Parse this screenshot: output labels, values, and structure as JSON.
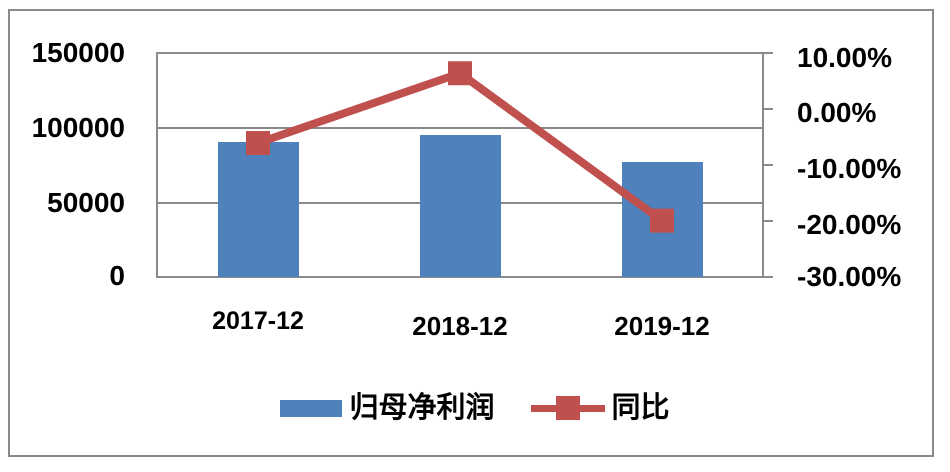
{
  "chart_data": {
    "type": "bar_line_combo",
    "title": "",
    "categories": [
      "2017-12",
      "2018-12",
      "2019-12"
    ],
    "series": [
      {
        "name": "归母净利润",
        "type": "bar",
        "axis": "left",
        "color": "#4F81BD",
        "values": [
          90000,
          95000,
          76500
        ]
      },
      {
        "name": "同比",
        "type": "line",
        "axis": "right",
        "color": "#C0504D",
        "unit": "%",
        "values": [
          -6.0,
          6.4,
          -19.8
        ]
      }
    ],
    "left_axis": {
      "min": 0,
      "max": 150000,
      "tick_step": 50000,
      "tick_labels": [
        "150000",
        "100000",
        "50000",
        "0"
      ]
    },
    "right_axis": {
      "min": -30,
      "max": 10,
      "tick_step": 10,
      "tick_labels": [
        "10.00%",
        "0.00%",
        "-10.00%",
        "-20.00%",
        "-30.00%"
      ]
    },
    "grid": true,
    "legend_position": "bottom"
  },
  "colors": {
    "bar": "#4F81BD",
    "line": "#C0504D",
    "grid": "#8A8A8A",
    "frame": "#8A8A8A",
    "text": "#000000",
    "background": "#FFFFFF"
  }
}
